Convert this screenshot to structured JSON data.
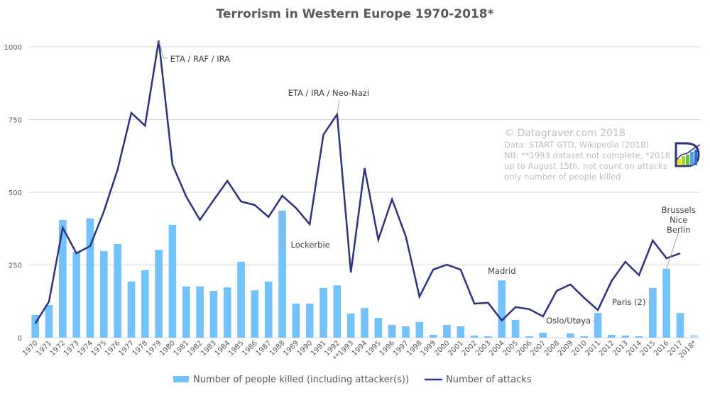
{
  "chart_data": {
    "type": "bar",
    "title": "Terrorism in Western Europe 1970-2018*",
    "xlabel": "",
    "ylabel": "",
    "ylim": [
      0,
      1000
    ],
    "yticks": [
      0,
      250,
      500,
      750,
      1000
    ],
    "grid": true,
    "legend_position": "bottom",
    "categories": [
      "1970",
      "1971",
      "1972",
      "1973",
      "1974",
      "1975",
      "1976",
      "1977",
      "1978",
      "1979",
      "1980",
      "1981",
      "1982",
      "1983",
      "1984",
      "1985",
      "1986",
      "1987",
      "1988",
      "1989",
      "1990",
      "1991",
      "1992",
      "**1993",
      "1994",
      "1995",
      "1996",
      "1997",
      "1998",
      "1999",
      "2000",
      "2001",
      "2002",
      "2003",
      "2004",
      "2005",
      "2006",
      "2007",
      "2008",
      "2009",
      "2010",
      "2011",
      "2012",
      "2013",
      "2014",
      "2015",
      "2016",
      "2017",
      "2018*"
    ],
    "series": [
      {
        "name": "Number of people killed (including attacker(s))",
        "type": "bar",
        "color": "#74c2fb",
        "highlight_last_color": "#b3dcfc",
        "values": [
          78,
          112,
          405,
          295,
          410,
          298,
          322,
          193,
          232,
          302,
          388,
          176,
          176,
          161,
          173,
          261,
          163,
          193,
          437,
          117,
          117,
          171,
          180,
          83,
          102,
          68,
          44,
          39,
          54,
          10,
          44,
          39,
          7,
          5,
          197,
          61,
          5,
          17,
          0,
          15,
          5,
          85,
          10,
          7,
          5,
          171,
          237,
          85,
          10
        ]
      },
      {
        "name": "Number of attacks",
        "type": "line",
        "color": "#2e3184",
        "values": [
          49,
          124,
          378,
          290,
          315,
          434,
          578,
          773,
          729,
          1022,
          595,
          485,
          405,
          473,
          539,
          468,
          456,
          415,
          488,
          446,
          390,
          698,
          768,
          224,
          583,
          337,
          476,
          349,
          141,
          234,
          251,
          234,
          117,
          120,
          59,
          105,
          98,
          73,
          161,
          183,
          137,
          95,
          195,
          261,
          215,
          334,
          273,
          290,
          null
        ]
      }
    ],
    "annotations": [
      {
        "text": [
          "ETA / RAF / IRA"
        ],
        "category": "1979",
        "series": "Number of attacks"
      },
      {
        "text": [
          "ETA / IRA / Neo-Nazi"
        ],
        "category": "1992",
        "series": "Number of attacks"
      },
      {
        "text": [
          "Lockerbie"
        ],
        "category": "1988",
        "series": "Number of people killed (including attacker(s))"
      },
      {
        "text": [
          "Madrid"
        ],
        "category": "2004",
        "series": "Number of people killed (including attacker(s))"
      },
      {
        "text": [
          "Oslo/Utøya"
        ],
        "category": "2011",
        "series": "Number of people killed (including attacker(s))"
      },
      {
        "text": [
          "Paris (2)"
        ],
        "category": "2015",
        "series": "Number of people killed (including attacker(s))"
      },
      {
        "text": [
          "Brussels",
          "Nice",
          "Berlin"
        ],
        "category": "2016",
        "series": "Number of people killed (including attacker(s))"
      }
    ],
    "credits": {
      "main": "© Datagraver.com 2018",
      "lines": [
        "Data: START GTD, Wikipedia (2018)",
        "NB: **1993 dataset not complete, *2018",
        "up to August 15th, not count on attacks",
        "only number of people killed"
      ]
    },
    "logo": "datagraver-logo-icon"
  }
}
